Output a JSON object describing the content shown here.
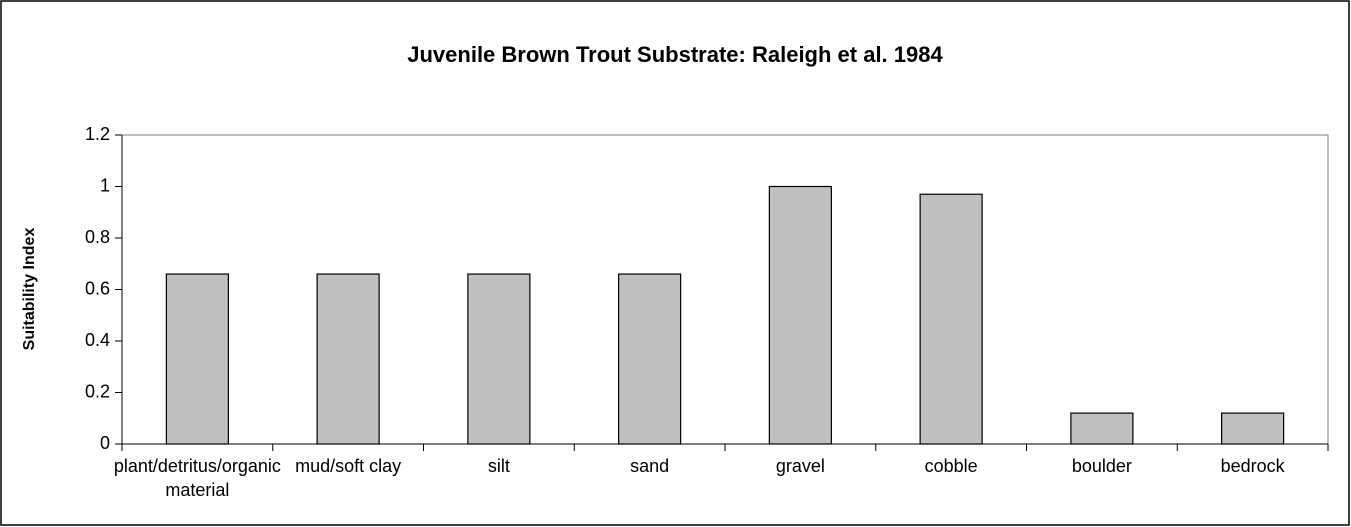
{
  "chart_data": {
    "type": "bar",
    "title": "Juvenile Brown Trout Substrate: Raleigh et al. 1984",
    "y_label": "Suitability Index",
    "categories": [
      "plant/detritus/organic material",
      "mud/soft clay",
      "silt",
      "sand",
      "gravel",
      "cobble",
      "boulder",
      "bedrock"
    ],
    "values": [
      0.66,
      0.66,
      0.66,
      0.66,
      1.0,
      0.97,
      0.12,
      0.12
    ],
    "color": "#c0c0c0",
    "ylim": [
      0,
      1.2
    ],
    "yticks": [
      0,
      0.2,
      0.4,
      0.6,
      0.8,
      1,
      1.2
    ],
    "grid": false
  }
}
